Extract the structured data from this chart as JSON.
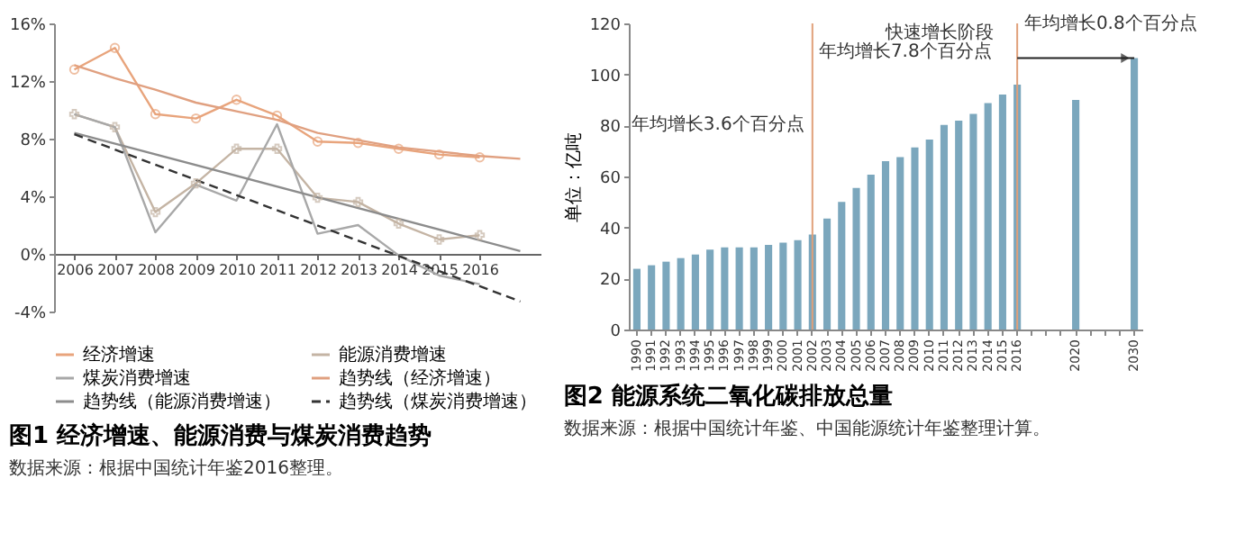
{
  "chart_data": [
    {
      "type": "line",
      "title": "图1 经济增速、能源消费与煤炭消费趋势",
      "annotations": [
        "数据来源：根据中国统计年鉴2016整理。"
      ],
      "xlim": [
        2005.5,
        2017.5
      ],
      "xticks": [
        2006,
        2007,
        2008,
        2009,
        2010,
        2011,
        2012,
        2013,
        2014,
        2015,
        2016
      ],
      "ylim": [
        -4,
        16
      ],
      "yticks": [
        {
          "value": -4,
          "label": "-4%"
        },
        {
          "value": 0,
          "label": "0%"
        },
        {
          "value": 4,
          "label": "4%"
        },
        {
          "value": 8,
          "label": "8%"
        },
        {
          "value": 12,
          "label": "12%"
        },
        {
          "value": 16,
          "label": "16%"
        }
      ],
      "legend": "bottom",
      "series": [
        {
          "name": "经济增速",
          "color": "#e8a47c",
          "marker": "circle",
          "line_style": "solid",
          "x": [
            2006,
            2007,
            2008,
            2009,
            2010,
            2011,
            2012,
            2013,
            2014,
            2015,
            2016
          ],
          "values": [
            12.8,
            14.3,
            9.7,
            9.4,
            10.7,
            9.6,
            7.8,
            7.7,
            7.3,
            6.9,
            6.7
          ]
        },
        {
          "name": "能源消费增速",
          "color": "#c4b4a4",
          "marker": "cross",
          "line_style": "solid",
          "x": [
            2006,
            2007,
            2008,
            2009,
            2010,
            2011,
            2012,
            2013,
            2014,
            2015,
            2016
          ],
          "values": [
            9.7,
            8.8,
            2.9,
            4.9,
            7.3,
            7.3,
            3.9,
            3.6,
            2.1,
            1.0,
            1.3
          ]
        },
        {
          "name": "煤炭消费增速",
          "color": "#a8a8a8",
          "marker": "none",
          "line_style": "solid",
          "x": [
            2006,
            2007,
            2008,
            2009,
            2010,
            2011,
            2012,
            2013,
            2014,
            2015,
            2016
          ],
          "values": [
            9.7,
            8.8,
            1.5,
            4.8,
            3.7,
            9.0,
            1.4,
            2.0,
            -0.1,
            -1.5,
            -2.1
          ]
        },
        {
          "name": "趋势线（经济增速）",
          "color": "#e0a080",
          "marker": "none",
          "line_style": "solid",
          "x": [
            2006,
            2007,
            2008,
            2009,
            2010,
            2011,
            2012,
            2013,
            2014,
            2015,
            2016,
            2017
          ],
          "values": [
            13.1,
            12.2,
            11.4,
            10.5,
            9.9,
            9.3,
            8.4,
            7.9,
            7.4,
            7.1,
            6.8,
            6.6
          ]
        },
        {
          "name": "趋势线（能源消费增速）",
          "color": "#8c8c8c",
          "marker": "none",
          "line_style": "solid",
          "x": [
            2006,
            2017
          ],
          "values": [
            8.4,
            0.2
          ]
        },
        {
          "name": "趋势线（煤炭消费增速）",
          "color": "#333333",
          "marker": "none",
          "line_style": "dashed",
          "x": [
            2006,
            2017
          ],
          "values": [
            8.3,
            -3.3
          ]
        }
      ]
    },
    {
      "type": "bar",
      "title": "图2 能源系统二氧化碳排放总量",
      "ylabel": "单位：亿吨",
      "color": "#7ba7bd",
      "ylim": [
        0,
        120
      ],
      "yticks": [
        0,
        20,
        40,
        60,
        80,
        100,
        120
      ],
      "categories": [
        "1990",
        "1991",
        "1992",
        "1993",
        "1994",
        "1995",
        "1996",
        "1997",
        "1998",
        "1999",
        "2000",
        "2001",
        "2002",
        "2003",
        "2004",
        "2005",
        "2006",
        "2007",
        "2008",
        "2009",
        "2010",
        "2011",
        "2012",
        "2013",
        "2014",
        "2015",
        "2016",
        null,
        null,
        null,
        "2020",
        null,
        null,
        null,
        "2030"
      ],
      "values": [
        23.8,
        25.2,
        26.6,
        28,
        29.4,
        31.3,
        32.2,
        32.2,
        32.2,
        33.2,
        34.1,
        35,
        37.2,
        43.5,
        50,
        55.5,
        60.7,
        66,
        67.6,
        71.4,
        74.5,
        80.2,
        81.9,
        84.5,
        88.8,
        92.1,
        96,
        null,
        null,
        null,
        90,
        null,
        null,
        null,
        106.4
      ],
      "ref_lines": [
        {
          "axis": "x",
          "value": "2002",
          "color": "#e0a07a"
        },
        {
          "axis": "x",
          "value": "2016",
          "color": "#e0a07a"
        }
      ],
      "annotations": [
        "年均增长3.6个百分点",
        "快速增长阶段",
        "年均增长7.8个百分点",
        "年均增长0.8个百分点",
        "数据来源：根据中国统计年鉴、中国能源统计年鉴整理计算。"
      ]
    }
  ]
}
